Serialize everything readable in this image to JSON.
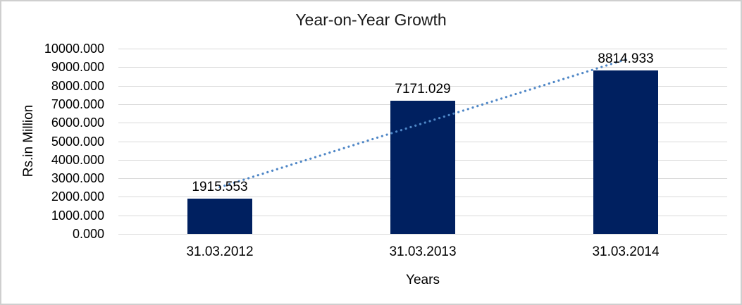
{
  "window": {
    "background": "#ffffff",
    "border_color": "#cfcfcf"
  },
  "chart_data": {
    "type": "bar",
    "title": "Year-on-Year Growth",
    "categories": [
      "31.03.2012",
      "31.03.2013",
      "31.03.2014"
    ],
    "values": [
      1915.553,
      7171.029,
      8814.933
    ],
    "data_labels": [
      "1915.553",
      "7171.029",
      "8814.933"
    ],
    "xlabel": "Years",
    "ylabel": "Rs.in Million",
    "ylim": [
      0,
      10000
    ],
    "y_tick_step": 1000,
    "y_tick_decimals": 3,
    "grid": true,
    "legend": "none",
    "bar_color": "#002060",
    "gridline_color": "#d9d9d9",
    "text_color": "#000000",
    "trendline": {
      "type": "linear",
      "style": "dotted",
      "color": "#4e86c6",
      "fit_of_series": "values"
    }
  }
}
